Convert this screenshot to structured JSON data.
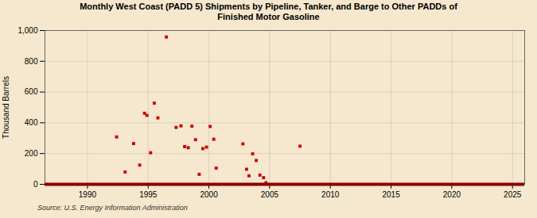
{
  "chart_data": {
    "type": "scatter",
    "title": "Monthly West Coast (PADD 5) Shipments by Pipeline, Tanker, and Barge to Other PADDs of\nFinished Motor Gasoline",
    "ylabel": "Thousand Barrels",
    "annotations": [
      "Source: U.S. Energy Information Administration"
    ],
    "x": [
      1992.4,
      1993.1,
      1993.8,
      1994.3,
      1994.7,
      1994.9,
      1995.2,
      1995.5,
      1995.8,
      1996.5,
      1997.3,
      1997.7,
      1998.0,
      1998.3,
      1998.6,
      1998.9,
      1999.2,
      1999.5,
      1999.8,
      2000.1,
      2000.4,
      2000.6,
      2002.8,
      2003.1,
      2003.3,
      2003.6,
      2003.9,
      2004.2,
      2004.5,
      2004.7,
      2007.5
    ],
    "values": [
      308,
      80,
      265,
      125,
      462,
      448,
      205,
      528,
      432,
      958,
      370,
      380,
      245,
      238,
      378,
      290,
      65,
      232,
      242,
      376,
      293,
      105,
      263,
      98,
      55,
      198,
      155,
      60,
      43,
      10,
      248
    ],
    "color": "#cc0000",
    "marker": "square",
    "xlim": [
      1986.5,
      2026
    ],
    "ylim": [
      0,
      1000
    ],
    "xticks": [
      1990,
      1995,
      2000,
      2005,
      2010,
      2015,
      2020,
      2025
    ],
    "yticks": [
      0,
      200,
      400,
      600,
      800,
      {
        "value": 1000,
        "label": "1,000"
      }
    ],
    "grid": true
  }
}
